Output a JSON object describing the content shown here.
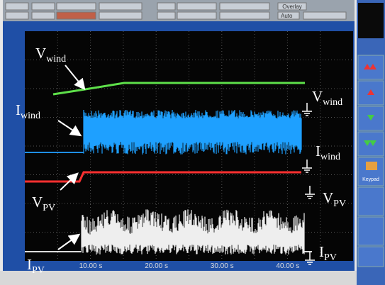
{
  "toolbar": {
    "overlay": "Overlay",
    "auto": "Auto"
  },
  "time_ticks": [
    "10.00 s",
    "20.00 s",
    "30.00 s",
    "40.00 s"
  ],
  "labels_left": [
    {
      "main": "V",
      "sub": "wind"
    },
    {
      "main": "I",
      "sub": "wind"
    },
    {
      "main": "V",
      "sub": "PV"
    },
    {
      "main": "I",
      "sub": "PV"
    }
  ],
  "labels_right": [
    {
      "main": "V",
      "sub": "wind"
    },
    {
      "main": "I",
      "sub": "wind"
    },
    {
      "main": "V",
      "sub": "PV"
    },
    {
      "main": "I",
      "sub": "PV"
    }
  ],
  "side_panel": {
    "keypad": "Keypad"
  }
}
